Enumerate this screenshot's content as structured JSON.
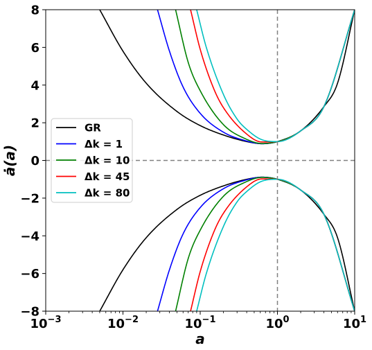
{
  "chart_data": {
    "type": "line",
    "xlabel": "a",
    "ylabel": "ȧ(a)",
    "xscale": "log",
    "xlim": [
      0.001,
      10
    ],
    "ylim": [
      -8,
      8
    ],
    "x_ticks": [
      {
        "value": 0.001,
        "base": "10",
        "exp": "−3"
      },
      {
        "value": 0.01,
        "base": "10",
        "exp": "−2"
      },
      {
        "value": 0.1,
        "base": "10",
        "exp": "−1"
      },
      {
        "value": 1,
        "base": "10",
        "exp": "0"
      },
      {
        "value": 10,
        "base": "10",
        "exp": "1"
      }
    ],
    "y_ticks": [
      {
        "value": 8,
        "label": "8"
      },
      {
        "value": 6,
        "label": "6"
      },
      {
        "value": 4,
        "label": "4"
      },
      {
        "value": 2,
        "label": "2"
      },
      {
        "value": 0,
        "label": "0"
      },
      {
        "value": -2,
        "label": "−2"
      },
      {
        "value": -4,
        "label": "−4"
      },
      {
        "value": -6,
        "label": "−6"
      },
      {
        "value": -8,
        "label": "−8"
      }
    ],
    "reference_lines": {
      "x": 1,
      "y": 0,
      "color": "#808080",
      "style": "dashed"
    },
    "legend_position": "center-left",
    "series": [
      {
        "name": "GR",
        "legend_text": "GR",
        "color": "#000000",
        "dk": 0,
        "x": [
          0.005,
          0.01,
          0.02,
          0.05,
          0.1,
          0.2,
          0.4,
          0.63,
          1,
          2,
          4,
          6,
          10
        ],
        "y": [
          8.0,
          5.8,
          4.1,
          2.6,
          1.85,
          1.35,
          1.0,
          0.89,
          1.0,
          1.57,
          2.86,
          4.1,
          8.0
        ]
      },
      {
        "name": "Δk = 1",
        "legend_text": "Δk = 1",
        "color": "#0000ff",
        "dk": 1,
        "x": [
          0.028,
          0.04,
          0.06,
          0.1,
          0.2,
          0.4,
          0.63,
          1,
          2,
          4,
          10
        ],
        "y": [
          8.0,
          5.8,
          3.9,
          2.5,
          1.5,
          1.03,
          0.89,
          1.0,
          1.57,
          2.86,
          8.0
        ]
      },
      {
        "name": "Δk = 10",
        "legend_text": "Δk = 10",
        "color": "#008000",
        "dk": 10,
        "x": [
          0.048,
          0.07,
          0.1,
          0.2,
          0.4,
          0.63,
          1,
          2,
          4,
          10
        ],
        "y": [
          8.0,
          5.2,
          3.7,
          1.9,
          1.12,
          0.9,
          1.0,
          1.57,
          2.86,
          8.0
        ]
      },
      {
        "name": "Δk = 45",
        "legend_text": "Δk = 45",
        "color": "#ff0000",
        "dk": 45,
        "x": [
          0.075,
          0.1,
          0.15,
          0.2,
          0.4,
          0.63,
          1,
          2,
          4,
          10
        ],
        "y": [
          8.0,
          5.9,
          3.8,
          2.8,
          1.4,
          0.98,
          1.0,
          1.57,
          2.86,
          8.0
        ]
      },
      {
        "name": "Δk = 80",
        "legend_text": "Δk = 80",
        "color": "#00bfbf",
        "dk": 80,
        "x": [
          0.09,
          0.12,
          0.2,
          0.3,
          0.4,
          0.63,
          1,
          2,
          4,
          10
        ],
        "y": [
          8.0,
          6.0,
          3.5,
          2.2,
          1.65,
          1.1,
          1.0,
          1.57,
          2.86,
          8.0
        ]
      }
    ],
    "note_symmetry": "each series is drawn with a mirrored branch y → −y"
  }
}
